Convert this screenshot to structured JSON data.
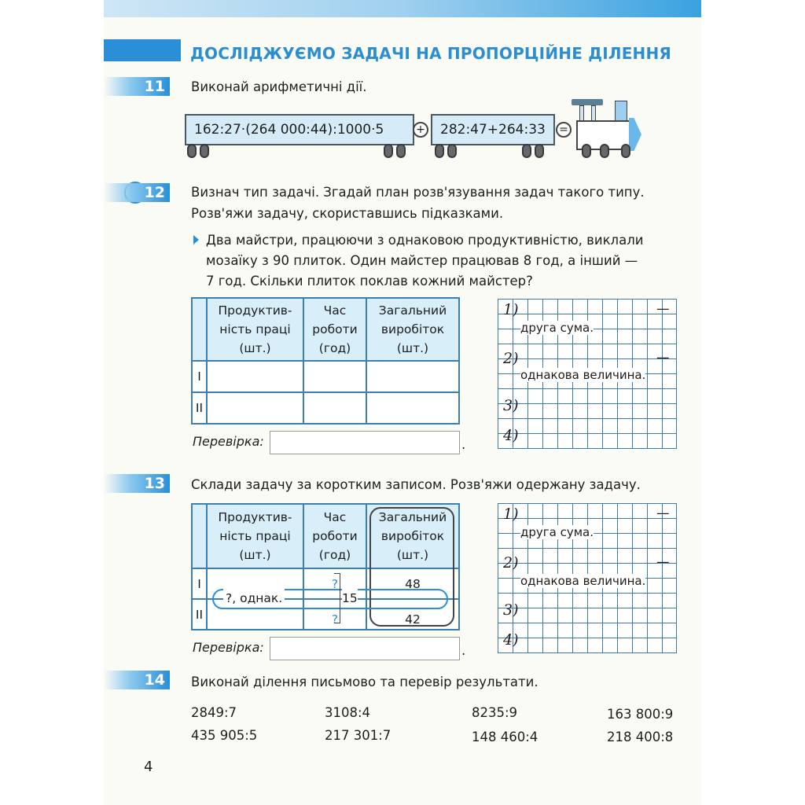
{
  "section_title": "ДОСЛІДЖУЄМО ЗАДАЧІ НА ПРОПОРЦІЙНЕ ДІЛЕННЯ",
  "colors": {
    "accent": "#2a8fd6",
    "table_border": "#3d7fae",
    "header_fill": "#d8eef9"
  },
  "ex11": {
    "num": "11",
    "text": "Виконай арифметичні дії.",
    "car1": "162:27·(264 000:44):1000·5",
    "plus": "+",
    "car2": "282:47+264:33",
    "equals": "="
  },
  "ex12": {
    "num": "12",
    "line1": "Визнач тип задачі. Згадай план розв'язування задач такого типу.",
    "line2": "Розв'яжи задачу, скориставшись підказками.",
    "task1": "Два майстри, працюючи з однаковою продуктивністю, виклали",
    "task2": "мозаїку з 90 плиток. Один майстер працював 8 год, а інший —",
    "task3": "7 год. Скільки плиток поклав кожний майстер?",
    "headers": [
      "Продуктив-\nність праці\n(шт.)",
      "Час\nроботи\n(год)",
      "Загальний\nвиробіток\n(шт.)"
    ],
    "rows": [
      "I",
      "II"
    ],
    "check": "Перевірка:",
    "plan": {
      "n1": "1)",
      "dash": "—",
      "t1": "друга сума.",
      "n2": "2)",
      "t2": "однакова величина.",
      "n3": "3)",
      "n4": "4)"
    }
  },
  "ex13": {
    "num": "13",
    "text": "Склади задачу за коротким записом. Розв'яжи одержану задачу.",
    "rows": [
      "I",
      "II"
    ],
    "q1": "?",
    "q2": "?",
    "same": "?, однак.",
    "sum": "15",
    "out1": "48",
    "out2": "42",
    "check": "Перевірка:"
  },
  "ex14": {
    "num": "14",
    "text": "Виконай ділення письмово та перевір результати.",
    "items": [
      "2849:7",
      "3108:4",
      "8235:9",
      "163 800:9",
      "435 905:5",
      "217 301:7",
      "148 460:4",
      "218 400:8"
    ]
  },
  "page_number": "4"
}
